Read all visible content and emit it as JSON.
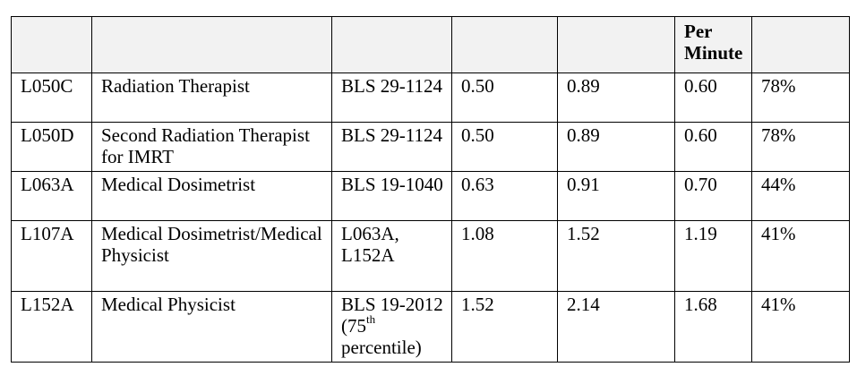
{
  "table": {
    "headers": [
      "",
      "",
      "",
      "",
      "",
      "Per Minute",
      ""
    ],
    "rows": [
      {
        "code": "L050C",
        "description": "Radiation Therapist",
        "source": "BLS 29-1124",
        "source_sup": "",
        "source_tail": "",
        "col4": "0.50",
        "col5": "0.89",
        "per_minute": "0.60",
        "percent": "78%"
      },
      {
        "code": "L050D",
        "description": "Second Radiation Therapist for IMRT",
        "source": "BLS 29-1124",
        "source_sup": "",
        "source_tail": "",
        "col4": "0.50",
        "col5": "0.89",
        "per_minute": "0.60",
        "percent": "78%"
      },
      {
        "code": "L063A",
        "description": "Medical Dosimetrist",
        "source": "BLS 19-1040",
        "source_sup": "",
        "source_tail": "",
        "col4": "0.63",
        "col5": "0.91",
        "per_minute": "0.70",
        "percent": "44%"
      },
      {
        "code": "L107A",
        "description": "Medical Dosimetrist/Medical Physicist",
        "source": "L063A, L152A",
        "source_sup": "",
        "source_tail": "",
        "col4": "1.08",
        "col5": "1.52",
        "per_minute": "1.19",
        "percent": "41%"
      },
      {
        "code": "L152A",
        "description": "Medical Physicist",
        "source": "BLS 19-2012 (75",
        "source_sup": "th",
        "source_tail": " percentile)",
        "col4": "1.52",
        "col5": "2.14",
        "per_minute": "1.68",
        "percent": "41%"
      }
    ]
  }
}
